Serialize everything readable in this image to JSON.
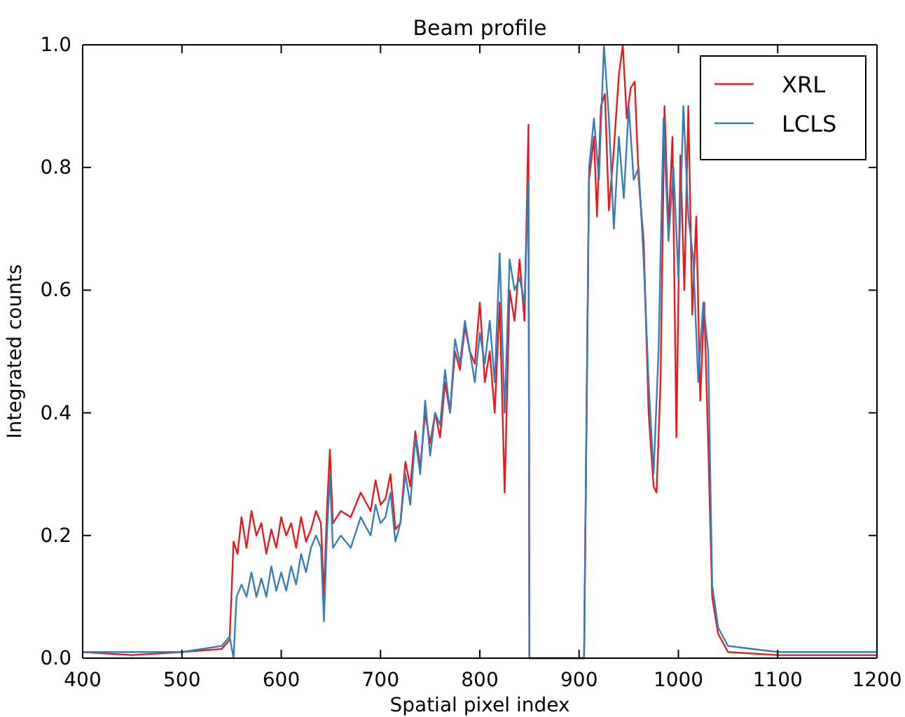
{
  "chart_data": {
    "type": "line",
    "title": "Beam profile",
    "xlabel": "Spatial pixel index",
    "ylabel": "Integrated counts",
    "xlim": [
      400,
      1200
    ],
    "xticks": [
      400,
      500,
      600,
      700,
      800,
      900,
      1000,
      1100,
      1200
    ],
    "ylim": [
      0,
      1
    ],
    "yticks": [
      {
        "value": 0,
        "label": "0.0"
      },
      {
        "value": 0.2,
        "label": "0.2"
      },
      {
        "value": 0.4,
        "label": "0.4"
      },
      {
        "value": 0.6,
        "label": "0.6"
      },
      {
        "value": 0.8,
        "label": "0.8"
      },
      {
        "value": 1,
        "label": "1.0"
      }
    ],
    "grid": false,
    "legend": "top right",
    "marker": "none",
    "line_style": "solid",
    "series": [
      {
        "name": "XRL",
        "color": "#e41a1c",
        "x": [
          400,
          450,
          500,
          540,
          548,
          552,
          556,
          560,
          565,
          570,
          575,
          580,
          585,
          590,
          595,
          600,
          605,
          610,
          615,
          620,
          625,
          630,
          635,
          640,
          643,
          646,
          649,
          652,
          660,
          670,
          680,
          690,
          695,
          700,
          705,
          710,
          715,
          720,
          725,
          730,
          735,
          740,
          745,
          750,
          755,
          760,
          765,
          770,
          775,
          780,
          785,
          790,
          795,
          800,
          805,
          810,
          815,
          820,
          825,
          830,
          835,
          840,
          845,
          849,
          850,
          905,
          910,
          915,
          918,
          922,
          926,
          930,
          935,
          940,
          944,
          948,
          952,
          956,
          960,
          965,
          970,
          975,
          978,
          982,
          986,
          990,
          994,
          998,
          1002,
          1006,
          1010,
          1014,
          1018,
          1022,
          1026,
          1030,
          1034,
          1040,
          1050,
          1100,
          1150,
          1200
        ],
        "values": [
          0.01,
          0.005,
          0.01,
          0.015,
          0.03,
          0.19,
          0.17,
          0.23,
          0.18,
          0.24,
          0.2,
          0.22,
          0.17,
          0.21,
          0.18,
          0.23,
          0.2,
          0.22,
          0.18,
          0.23,
          0.19,
          0.21,
          0.24,
          0.22,
          0.1,
          0.24,
          0.34,
          0.22,
          0.24,
          0.23,
          0.27,
          0.24,
          0.29,
          0.25,
          0.26,
          0.3,
          0.21,
          0.22,
          0.32,
          0.28,
          0.37,
          0.31,
          0.4,
          0.35,
          0.4,
          0.36,
          0.45,
          0.4,
          0.5,
          0.47,
          0.54,
          0.5,
          0.48,
          0.58,
          0.45,
          0.5,
          0.4,
          0.58,
          0.27,
          0.6,
          0.55,
          0.65,
          0.55,
          0.87,
          0,
          0,
          0.78,
          0.85,
          0.72,
          0.9,
          0.92,
          0.73,
          0.83,
          0.95,
          1.0,
          0.88,
          0.93,
          0.94,
          0.78,
          0.68,
          0.4,
          0.28,
          0.27,
          0.45,
          0.9,
          0.7,
          0.85,
          0.36,
          0.82,
          0.6,
          0.9,
          0.56,
          0.72,
          0.42,
          0.58,
          0.35,
          0.1,
          0.04,
          0.01,
          0.005,
          0.005,
          0.005
        ]
      },
      {
        "name": "LCLS",
        "color": "#377eb8",
        "x": [
          400,
          450,
          500,
          540,
          548,
          552,
          555,
          560,
          565,
          570,
          575,
          580,
          585,
          590,
          595,
          600,
          605,
          610,
          615,
          620,
          625,
          630,
          635,
          640,
          643,
          646,
          649,
          652,
          660,
          670,
          680,
          690,
          695,
          700,
          705,
          710,
          715,
          720,
          725,
          730,
          735,
          740,
          745,
          750,
          755,
          760,
          765,
          770,
          775,
          780,
          785,
          790,
          795,
          800,
          805,
          810,
          815,
          820,
          825,
          830,
          835,
          840,
          845,
          849,
          850,
          905,
          910,
          915,
          920,
          925,
          930,
          935,
          940,
          945,
          950,
          955,
          960,
          965,
          970,
          975,
          980,
          985,
          990,
          995,
          1000,
          1005,
          1010,
          1015,
          1020,
          1025,
          1030,
          1034,
          1040,
          1050,
          1100,
          1150,
          1200
        ],
        "values": [
          0.01,
          0.01,
          0.01,
          0.02,
          0.035,
          0.0,
          0.1,
          0.12,
          0.1,
          0.14,
          0.1,
          0.13,
          0.1,
          0.15,
          0.11,
          0.14,
          0.11,
          0.15,
          0.12,
          0.17,
          0.14,
          0.18,
          0.2,
          0.18,
          0.06,
          0.2,
          0.3,
          0.18,
          0.2,
          0.18,
          0.23,
          0.2,
          0.25,
          0.22,
          0.23,
          0.27,
          0.19,
          0.22,
          0.3,
          0.25,
          0.36,
          0.3,
          0.42,
          0.33,
          0.4,
          0.38,
          0.47,
          0.4,
          0.52,
          0.48,
          0.55,
          0.5,
          0.45,
          0.53,
          0.48,
          0.55,
          0.45,
          0.66,
          0.4,
          0.65,
          0.6,
          0.62,
          0.58,
          0.78,
          0,
          0,
          0.8,
          0.88,
          0.78,
          1.0,
          0.88,
          0.7,
          0.85,
          0.75,
          0.9,
          0.78,
          0.8,
          0.65,
          0.45,
          0.3,
          0.5,
          0.88,
          0.68,
          0.8,
          0.62,
          0.9,
          0.72,
          0.65,
          0.45,
          0.58,
          0.5,
          0.12,
          0.05,
          0.02,
          0.01,
          0.01,
          0.01
        ]
      }
    ]
  }
}
